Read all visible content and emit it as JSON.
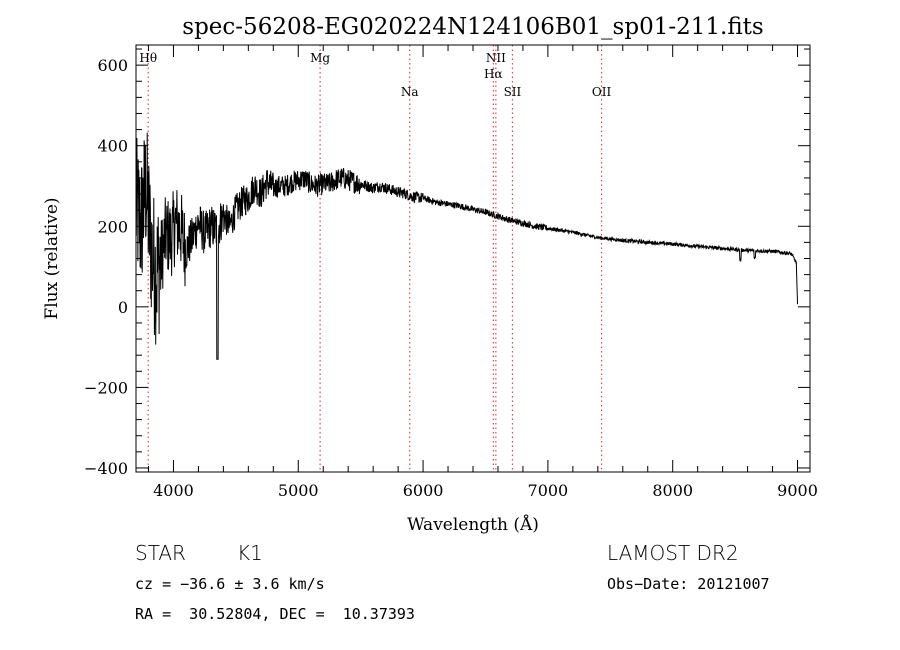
{
  "chart_data": {
    "type": "line",
    "title": "spec-56208-EG020224N124106B01_sp01-211.fits",
    "xlabel": "Wavelength (Å)",
    "ylabel": "Flux (relative)",
    "xlim": [
      3700,
      9100
    ],
    "ylim": [
      -410,
      650
    ],
    "x_ticks": [
      4000,
      5000,
      6000,
      7000,
      8000,
      9000
    ],
    "y_ticks": [
      -400,
      -200,
      0,
      200,
      400,
      600
    ],
    "grid": false,
    "lines": [
      {
        "label": "Hθ",
        "wavelength": 3798,
        "row": 0
      },
      {
        "label": "Mg",
        "wavelength": 5175,
        "row": 0
      },
      {
        "label": "Na",
        "wavelength": 5893,
        "row": 2
      },
      {
        "label": "NII",
        "wavelength": 6583,
        "row": 0
      },
      {
        "label": "Hα",
        "wavelength": 6563,
        "row": 1
      },
      {
        "label": "SII",
        "wavelength": 6716,
        "row": 2
      },
      {
        "label": "OII",
        "wavelength": 7430,
        "row": 2
      }
    ],
    "series": [
      {
        "x": [
          3700,
          3740,
          3780,
          3820,
          3860,
          3900,
          3940,
          3980,
          4020,
          4060,
          4100,
          4150,
          4200,
          4250,
          4300,
          4350,
          4400,
          4450,
          4500,
          4550,
          4600,
          4650,
          4700,
          4750,
          4800,
          4850,
          4900,
          4950,
          5000,
          5050,
          5100,
          5150,
          5200,
          5250,
          5300,
          5350,
          5400,
          5450,
          5500,
          5550,
          5600,
          5650,
          5700,
          5750,
          5800,
          5850,
          5900,
          5950,
          6000,
          6100,
          6200,
          6300,
          6400,
          6500,
          6600,
          6700,
          6800,
          6900,
          7000,
          7200,
          7400,
          7600,
          7800,
          8000,
          8200,
          8400,
          8600,
          8800,
          8950,
          8990,
          9000
        ],
        "y": [
          250,
          200,
          300,
          150,
          80,
          120,
          180,
          170,
          210,
          190,
          140,
          170,
          210,
          180,
          200,
          190,
          230,
          200,
          240,
          260,
          270,
          300,
          280,
          310,
          295,
          300,
          300,
          310,
          315,
          318,
          305,
          300,
          305,
          305,
          315,
          320,
          315,
          310,
          305,
          300,
          295,
          300,
          295,
          290,
          285,
          282,
          275,
          272,
          270,
          260,
          255,
          250,
          242,
          235,
          225,
          215,
          208,
          200,
          195,
          185,
          172,
          165,
          160,
          156,
          150,
          145,
          140,
          138,
          132,
          110,
          5
        ]
      }
    ]
  },
  "info": {
    "class_label": "STAR",
    "subclass": "K1",
    "survey": "LAMOST DR2",
    "cz": "cz = −36.6 ± 3.6 km/s",
    "obs_date": "Obs−Date: 20121007",
    "radec": "RA =  30.52804, DEC =  10.37393"
  }
}
